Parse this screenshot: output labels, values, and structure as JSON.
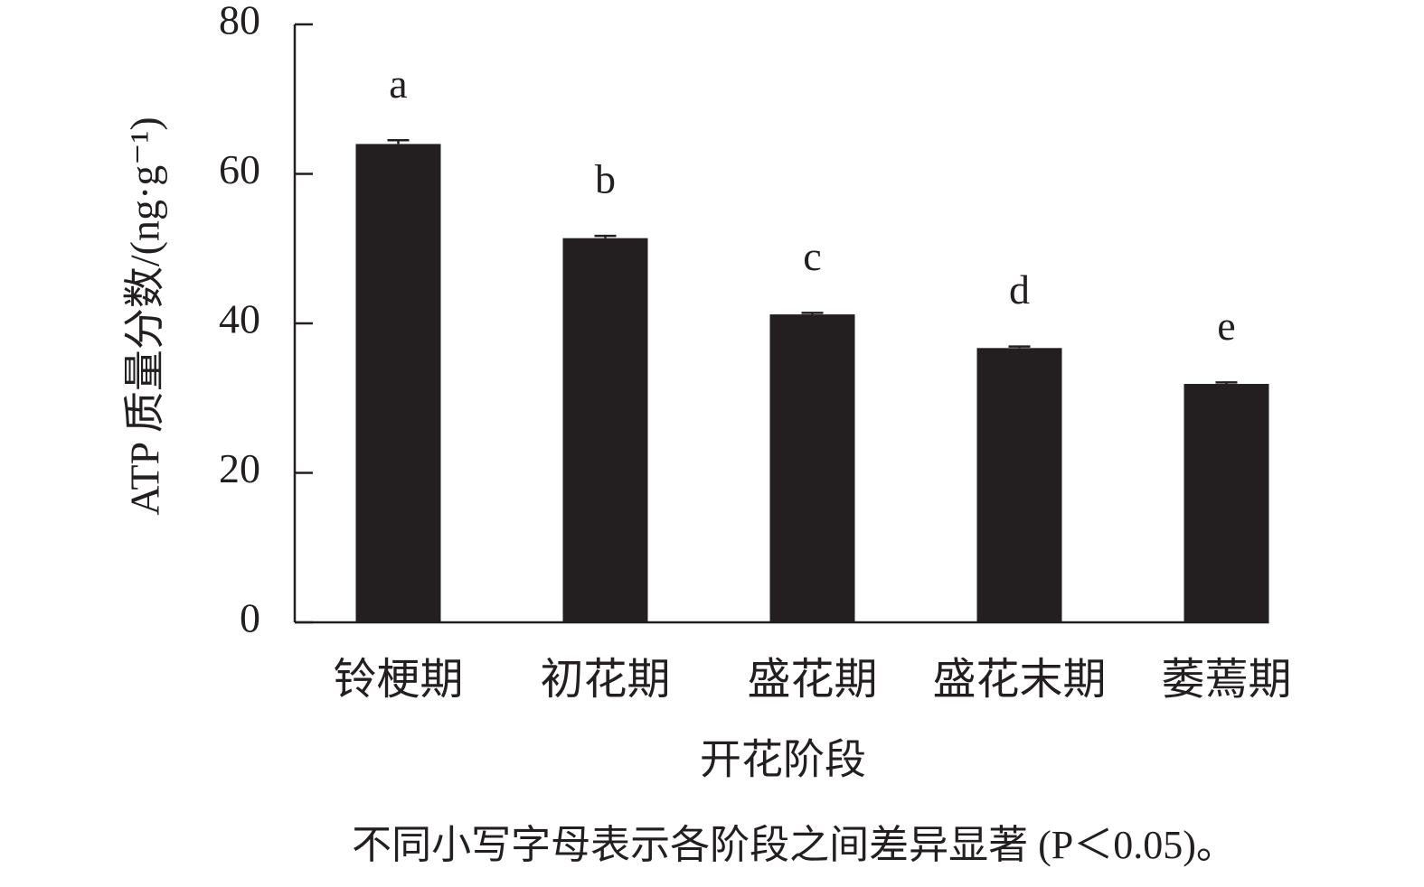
{
  "chart_data": {
    "type": "bar",
    "y_label": "ATP 质量分数/(ng·g⁻¹)",
    "x_label": "开花阶段",
    "note": "不同小写字母表示各阶段之间差异显著 (P＜0.05)。",
    "categories": [
      "铃梗期",
      "初花期",
      "盛花期",
      "盛花末期",
      "萎蔫期"
    ],
    "values": [
      64,
      51.4,
      41.2,
      36.7,
      31.9
    ],
    "errors": [
      0.5,
      0.3,
      0.2,
      0.2,
      0.2
    ],
    "significance": [
      "a",
      "b",
      "c",
      "d",
      "e"
    ],
    "color": "#231f20",
    "ylim": [
      0,
      80
    ],
    "yticks": [
      0,
      20,
      40,
      60,
      80
    ]
  }
}
